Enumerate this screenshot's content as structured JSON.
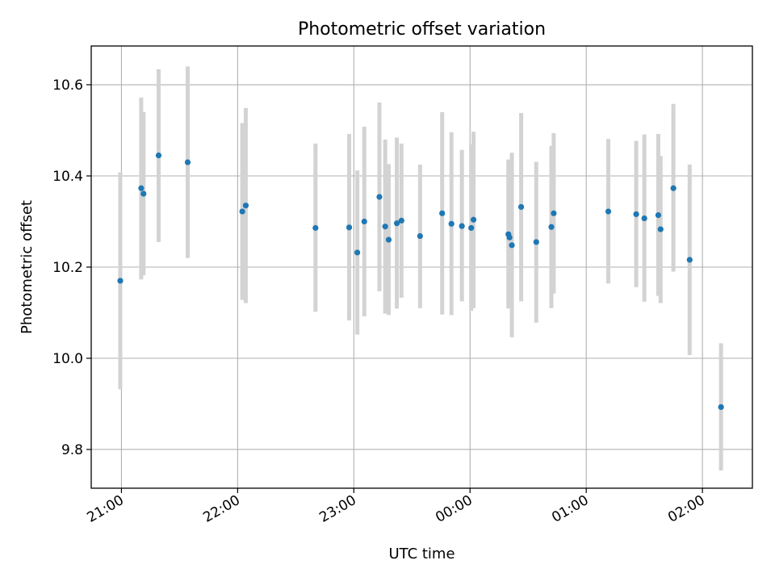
{
  "chart_data": {
    "type": "scatter",
    "title": "Photometric offset variation",
    "xlabel": "UTC time",
    "ylabel": "Photometric offset",
    "x_unit": "UTC time (hours; past midnight shown as 24+)",
    "xlim": [
      20.74,
      26.43
    ],
    "ylim": [
      9.715,
      10.685
    ],
    "x_ticks": [
      21,
      22,
      23,
      24,
      25,
      26
    ],
    "x_tick_labels": [
      "21:00",
      "22:00",
      "23:00",
      "00:00",
      "01:00",
      "02:00"
    ],
    "y_ticks": [
      9.8,
      10.0,
      10.2,
      10.4,
      10.6
    ],
    "y_tick_labels": [
      "9.8",
      "10.0",
      "10.2",
      "10.4",
      "10.6"
    ],
    "grid": true,
    "point_color": "#1f77b4",
    "errorbar_color": "#d3d3d3",
    "points": [
      {
        "x": 20.99,
        "y": 10.17,
        "lo": 9.932,
        "hi": 10.408
      },
      {
        "x": 21.17,
        "y": 10.373,
        "lo": 10.173,
        "hi": 10.572
      },
      {
        "x": 21.19,
        "y": 10.361,
        "lo": 10.182,
        "hi": 10.54
      },
      {
        "x": 21.32,
        "y": 10.445,
        "lo": 10.255,
        "hi": 10.634
      },
      {
        "x": 21.57,
        "y": 10.43,
        "lo": 10.22,
        "hi": 10.64
      },
      {
        "x": 22.04,
        "y": 10.322,
        "lo": 10.128,
        "hi": 10.516
      },
      {
        "x": 22.07,
        "y": 10.335,
        "lo": 10.121,
        "hi": 10.549
      },
      {
        "x": 22.67,
        "y": 10.286,
        "lo": 10.102,
        "hi": 10.471
      },
      {
        "x": 22.96,
        "y": 10.287,
        "lo": 10.083,
        "hi": 10.492
      },
      {
        "x": 23.03,
        "y": 10.232,
        "lo": 10.052,
        "hi": 10.412
      },
      {
        "x": 23.09,
        "y": 10.3,
        "lo": 10.092,
        "hi": 10.508
      },
      {
        "x": 23.22,
        "y": 10.354,
        "lo": 10.147,
        "hi": 10.561
      },
      {
        "x": 23.27,
        "y": 10.289,
        "lo": 10.098,
        "hi": 10.48
      },
      {
        "x": 23.3,
        "y": 10.26,
        "lo": 10.095,
        "hi": 10.426
      },
      {
        "x": 23.37,
        "y": 10.296,
        "lo": 10.109,
        "hi": 10.484
      },
      {
        "x": 23.41,
        "y": 10.302,
        "lo": 10.133,
        "hi": 10.471
      },
      {
        "x": 23.57,
        "y": 10.268,
        "lo": 10.11,
        "hi": 10.425
      },
      {
        "x": 23.76,
        "y": 10.318,
        "lo": 10.096,
        "hi": 10.54
      },
      {
        "x": 23.84,
        "y": 10.295,
        "lo": 10.095,
        "hi": 10.496
      },
      {
        "x": 23.93,
        "y": 10.29,
        "lo": 10.125,
        "hi": 10.457
      },
      {
        "x": 24.01,
        "y": 10.286,
        "lo": 10.104,
        "hi": 10.469
      },
      {
        "x": 24.03,
        "y": 10.304,
        "lo": 10.11,
        "hi": 10.497
      },
      {
        "x": 24.33,
        "y": 10.272,
        "lo": 10.109,
        "hi": 10.436
      },
      {
        "x": 24.34,
        "y": 10.265,
        "lo": 10.112,
        "hi": 10.418
      },
      {
        "x": 24.36,
        "y": 10.248,
        "lo": 10.046,
        "hi": 10.451
      },
      {
        "x": 24.44,
        "y": 10.332,
        "lo": 10.125,
        "hi": 10.538
      },
      {
        "x": 24.57,
        "y": 10.255,
        "lo": 10.078,
        "hi": 10.431
      },
      {
        "x": 24.7,
        "y": 10.288,
        "lo": 10.11,
        "hi": 10.466
      },
      {
        "x": 24.72,
        "y": 10.318,
        "lo": 10.142,
        "hi": 10.494
      },
      {
        "x": 25.19,
        "y": 10.322,
        "lo": 10.164,
        "hi": 10.481
      },
      {
        "x": 25.43,
        "y": 10.316,
        "lo": 10.156,
        "hi": 10.477
      },
      {
        "x": 25.5,
        "y": 10.307,
        "lo": 10.124,
        "hi": 10.491
      },
      {
        "x": 25.62,
        "y": 10.314,
        "lo": 10.137,
        "hi": 10.492
      },
      {
        "x": 25.64,
        "y": 10.283,
        "lo": 10.121,
        "hi": 10.444
      },
      {
        "x": 25.75,
        "y": 10.373,
        "lo": 10.19,
        "hi": 10.558
      },
      {
        "x": 25.89,
        "y": 10.216,
        "lo": 10.007,
        "hi": 10.425
      },
      {
        "x": 26.16,
        "y": 9.893,
        "lo": 9.754,
        "hi": 10.033
      }
    ]
  }
}
